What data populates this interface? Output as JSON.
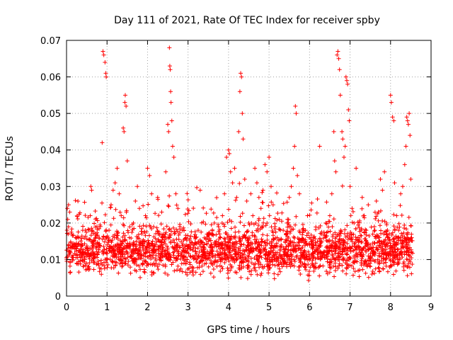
{
  "chart_data": {
    "type": "scatter",
    "title": "Day 111 of 2021, Rate Of TEC Index for receiver spby",
    "xlabel": "GPS time / hours",
    "ylabel": "ROTI / TECUs",
    "xlim": [
      0,
      9
    ],
    "ylim": [
      0,
      0.07
    ],
    "x_ticks": [
      "0",
      "1",
      "2",
      "3",
      "4",
      "5",
      "6",
      "7",
      "8",
      "9"
    ],
    "y_ticks": [
      "0",
      "0.01",
      "0.02",
      "0.03",
      "0.04",
      "0.05",
      "0.06",
      "0.07"
    ],
    "grid": true,
    "marker": "+",
    "color": "#ff0000",
    "series": [
      {
        "name": "ROTI",
        "points": [
          [
            0.02,
            0.024
          ],
          [
            0.05,
            0.025
          ],
          [
            0.08,
            0.023
          ],
          [
            0.03,
            0.021
          ],
          [
            0.1,
            0.012
          ],
          [
            0.15,
            0.01
          ],
          [
            0.2,
            0.014
          ],
          [
            0.25,
            0.009
          ],
          [
            0.3,
            0.016
          ],
          [
            0.35,
            0.012
          ],
          [
            0.4,
            0.018
          ],
          [
            0.45,
            0.01
          ],
          [
            0.5,
            0.013
          ],
          [
            0.55,
            0.008
          ],
          [
            0.6,
            0.03
          ],
          [
            0.62,
            0.029
          ],
          [
            0.65,
            0.015
          ],
          [
            0.7,
            0.011
          ],
          [
            0.75,
            0.019
          ],
          [
            0.8,
            0.012
          ],
          [
            0.85,
            0.009
          ],
          [
            0.88,
            0.042
          ],
          [
            0.9,
            0.067
          ],
          [
            0.92,
            0.066
          ],
          [
            0.95,
            0.064
          ],
          [
            0.97,
            0.061
          ],
          [
            0.98,
            0.06
          ],
          [
            1.0,
            0.014
          ],
          [
            1.05,
            0.018
          ],
          [
            1.1,
            0.025
          ],
          [
            1.15,
            0.029
          ],
          [
            1.2,
            0.031
          ],
          [
            1.25,
            0.035
          ],
          [
            1.3,
            0.028
          ],
          [
            1.35,
            0.022
          ],
          [
            1.4,
            0.046
          ],
          [
            1.42,
            0.045
          ],
          [
            1.44,
            0.053
          ],
          [
            1.45,
            0.055
          ],
          [
            1.47,
            0.052
          ],
          [
            1.5,
            0.037
          ],
          [
            1.55,
            0.016
          ],
          [
            1.6,
            0.012
          ],
          [
            1.65,
            0.02
          ],
          [
            1.7,
            0.026
          ],
          [
            1.75,
            0.03
          ],
          [
            1.8,
            0.024
          ],
          [
            1.85,
            0.011
          ],
          [
            1.9,
            0.015
          ],
          [
            1.95,
            0.022
          ],
          [
            2.0,
            0.035
          ],
          [
            2.05,
            0.033
          ],
          [
            2.1,
            0.028
          ],
          [
            2.15,
            0.019
          ],
          [
            2.2,
            0.014
          ],
          [
            2.25,
            0.027
          ],
          [
            2.3,
            0.01
          ],
          [
            2.35,
            0.023
          ],
          [
            2.4,
            0.017
          ],
          [
            2.45,
            0.034
          ],
          [
            2.5,
            0.047
          ],
          [
            2.52,
            0.045
          ],
          [
            2.54,
            0.068
          ],
          [
            2.55,
            0.063
          ],
          [
            2.56,
            0.062
          ],
          [
            2.57,
            0.056
          ],
          [
            2.58,
            0.053
          ],
          [
            2.6,
            0.048
          ],
          [
            2.62,
            0.041
          ],
          [
            2.65,
            0.038
          ],
          [
            2.7,
            0.028
          ],
          [
            2.75,
            0.024
          ],
          [
            2.8,
            0.019
          ],
          [
            2.85,
            0.012
          ],
          [
            2.9,
            0.009
          ],
          [
            2.95,
            0.016
          ],
          [
            3.0,
            0.013
          ],
          [
            3.05,
            0.011
          ],
          [
            3.1,
            0.008
          ],
          [
            3.15,
            0.014
          ],
          [
            3.2,
            0.01
          ],
          [
            3.25,
            0.018
          ],
          [
            3.3,
            0.029
          ],
          [
            3.35,
            0.011
          ],
          [
            3.4,
            0.013
          ],
          [
            3.45,
            0.009
          ],
          [
            3.5,
            0.015
          ],
          [
            3.55,
            0.012
          ],
          [
            3.6,
            0.017
          ],
          [
            3.65,
            0.02
          ],
          [
            3.7,
            0.014
          ],
          [
            3.75,
            0.019
          ],
          [
            3.8,
            0.016
          ],
          [
            3.85,
            0.022
          ],
          [
            3.9,
            0.028
          ],
          [
            3.95,
            0.038
          ],
          [
            4.0,
            0.04
          ],
          [
            4.02,
            0.039
          ],
          [
            4.05,
            0.034
          ],
          [
            4.1,
            0.031
          ],
          [
            4.15,
            0.035
          ],
          [
            4.2,
            0.027
          ],
          [
            4.25,
            0.045
          ],
          [
            4.28,
            0.056
          ],
          [
            4.3,
            0.061
          ],
          [
            4.32,
            0.06
          ],
          [
            4.34,
            0.05
          ],
          [
            4.36,
            0.043
          ],
          [
            4.4,
            0.032
          ],
          [
            4.45,
            0.026
          ],
          [
            4.5,
            0.02
          ],
          [
            4.55,
            0.028
          ],
          [
            4.6,
            0.022
          ],
          [
            4.65,
            0.035
          ],
          [
            4.7,
            0.031
          ],
          [
            4.75,
            0.027
          ],
          [
            4.8,
            0.024
          ],
          [
            4.85,
            0.029
          ],
          [
            4.9,
            0.036
          ],
          [
            4.95,
            0.034
          ],
          [
            5.0,
            0.038
          ],
          [
            5.05,
            0.03
          ],
          [
            5.1,
            0.025
          ],
          [
            5.15,
            0.019
          ],
          [
            5.2,
            0.016
          ],
          [
            5.25,
            0.021
          ],
          [
            5.3,
            0.014
          ],
          [
            5.35,
            0.018
          ],
          [
            5.4,
            0.012
          ],
          [
            5.45,
            0.02
          ],
          [
            5.5,
            0.027
          ],
          [
            5.55,
            0.03
          ],
          [
            5.6,
            0.035
          ],
          [
            5.63,
            0.041
          ],
          [
            5.65,
            0.052
          ],
          [
            5.67,
            0.05
          ],
          [
            5.7,
            0.033
          ],
          [
            5.75,
            0.028
          ],
          [
            5.8,
            0.015
          ],
          [
            5.85,
            0.012
          ],
          [
            5.9,
            0.018
          ],
          [
            5.95,
            0.022
          ],
          [
            6.0,
            0.014
          ],
          [
            6.05,
            0.011
          ],
          [
            6.1,
            0.016
          ],
          [
            6.15,
            0.009
          ],
          [
            6.2,
            0.013
          ],
          [
            6.25,
            0.041
          ],
          [
            6.3,
            0.017
          ],
          [
            6.35,
            0.012
          ],
          [
            6.4,
            0.02
          ],
          [
            6.45,
            0.015
          ],
          [
            6.5,
            0.022
          ],
          [
            6.55,
            0.028
          ],
          [
            6.6,
            0.045
          ],
          [
            6.62,
            0.037
          ],
          [
            6.65,
            0.034
          ],
          [
            6.68,
            0.066
          ],
          [
            6.7,
            0.067
          ],
          [
            6.72,
            0.065
          ],
          [
            6.74,
            0.062
          ],
          [
            6.76,
            0.055
          ],
          [
            6.8,
            0.045
          ],
          [
            6.82,
            0.043
          ],
          [
            6.85,
            0.038
          ],
          [
            6.88,
            0.041
          ],
          [
            6.9,
            0.06
          ],
          [
            6.92,
            0.059
          ],
          [
            6.94,
            0.058
          ],
          [
            6.96,
            0.051
          ],
          [
            6.98,
            0.048
          ],
          [
            7.0,
            0.03
          ],
          [
            7.05,
            0.024
          ],
          [
            7.1,
            0.02
          ],
          [
            7.15,
            0.035
          ],
          [
            7.2,
            0.016
          ],
          [
            7.25,
            0.012
          ],
          [
            7.3,
            0.027
          ],
          [
            7.35,
            0.022
          ],
          [
            7.4,
            0.018
          ],
          [
            7.45,
            0.025
          ],
          [
            7.5,
            0.014
          ],
          [
            7.55,
            0.011
          ],
          [
            7.6,
            0.019
          ],
          [
            7.65,
            0.026
          ],
          [
            7.7,
            0.023
          ],
          [
            7.75,
            0.032
          ],
          [
            7.8,
            0.029
          ],
          [
            7.85,
            0.034
          ],
          [
            7.9,
            0.02
          ],
          [
            7.95,
            0.016
          ],
          [
            8.0,
            0.055
          ],
          [
            8.02,
            0.053
          ],
          [
            8.05,
            0.049
          ],
          [
            8.08,
            0.048
          ],
          [
            8.1,
            0.031
          ],
          [
            8.15,
            0.022
          ],
          [
            8.2,
            0.018
          ],
          [
            8.25,
            0.028
          ],
          [
            8.3,
            0.03
          ],
          [
            8.35,
            0.036
          ],
          [
            8.38,
            0.041
          ],
          [
            8.4,
            0.049
          ],
          [
            8.42,
            0.048
          ],
          [
            8.44,
            0.047
          ],
          [
            8.46,
            0.05
          ],
          [
            8.48,
            0.044
          ],
          [
            8.5,
            0.032
          ],
          [
            8.52,
            0.016
          ]
        ],
        "band": {
          "x_range": [
            0,
            8.55
          ],
          "y_base": 0.0125,
          "y_spread": 0.007,
          "y_floor": 0.004,
          "count": 2400
        }
      }
    ]
  }
}
